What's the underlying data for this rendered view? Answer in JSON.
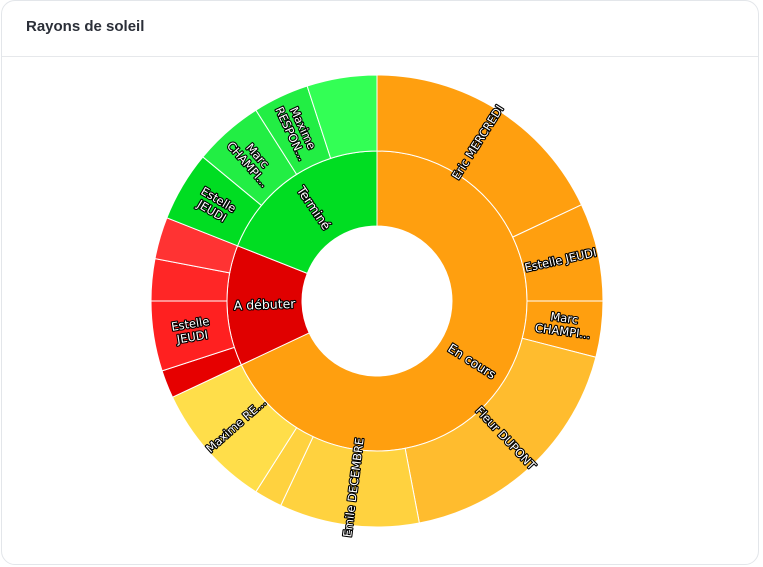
{
  "card": {
    "title": "Rayons de soleil"
  },
  "chart_data": {
    "type": "sunburst",
    "title": "Rayons de soleil",
    "center": null,
    "children": [
      {
        "name": "En cours",
        "color": "#ff9f0f",
        "value": 68,
        "children": [
          {
            "name": "Eric MERCREDI",
            "label": "Eric MERCREDI",
            "value": 18,
            "color": "#ff9f0f"
          },
          {
            "name": "Estelle JEUDI",
            "label": "Estelle JEUDI",
            "value": 7,
            "color": "#ff9f0f"
          },
          {
            "name": "Marc CHAMPI...",
            "label": "Marc\nCHAMPI...",
            "value": 4,
            "color": "#ff9f0f"
          },
          {
            "name": "Fleur DUPONT",
            "label": "Fleur DUPONT",
            "value": 18,
            "color": "#ffbc2e"
          },
          {
            "name": "Emile DECEMBRE",
            "label": "Emile DECEMBRE",
            "value": 10,
            "color": "#ffd23f"
          },
          {
            "name": "",
            "label": "",
            "value": 2,
            "color": "#ffd23f"
          },
          {
            "name": "Maxime RE...",
            "label": "Maxime RE...",
            "value": 9,
            "color": "#ffde4a"
          }
        ]
      },
      {
        "name": "A débuter",
        "color": "#e00000",
        "value": 13,
        "children": [
          {
            "name": "",
            "label": "",
            "value": 2,
            "color": "#e60000"
          },
          {
            "name": "Estelle JEUDI",
            "label": "Estelle\nJEUDI",
            "value": 5,
            "color": "#ff2020"
          },
          {
            "name": "",
            "label": "",
            "value": 3,
            "color": "#ff2626"
          },
          {
            "name": "",
            "label": "",
            "value": 3,
            "color": "#ff3333"
          }
        ]
      },
      {
        "name": "Terminé",
        "color": "#00dd22",
        "value": 19,
        "children": [
          {
            "name": "Estelle JEUDI",
            "label": "Estelle\nJEUDI",
            "value": 5,
            "color": "#00dd22"
          },
          {
            "name": "Marc CHAMPI...",
            "label": "Marc\nCHAMPI...",
            "value": 5,
            "color": "#22ee44"
          },
          {
            "name": "Maxime RESPON...",
            "label": "Maxime\nRESPON...",
            "value": 4,
            "color": "#22ee44"
          },
          {
            "name": "",
            "label": "",
            "value": 5,
            "color": "#33ff55"
          }
        ]
      }
    ]
  }
}
